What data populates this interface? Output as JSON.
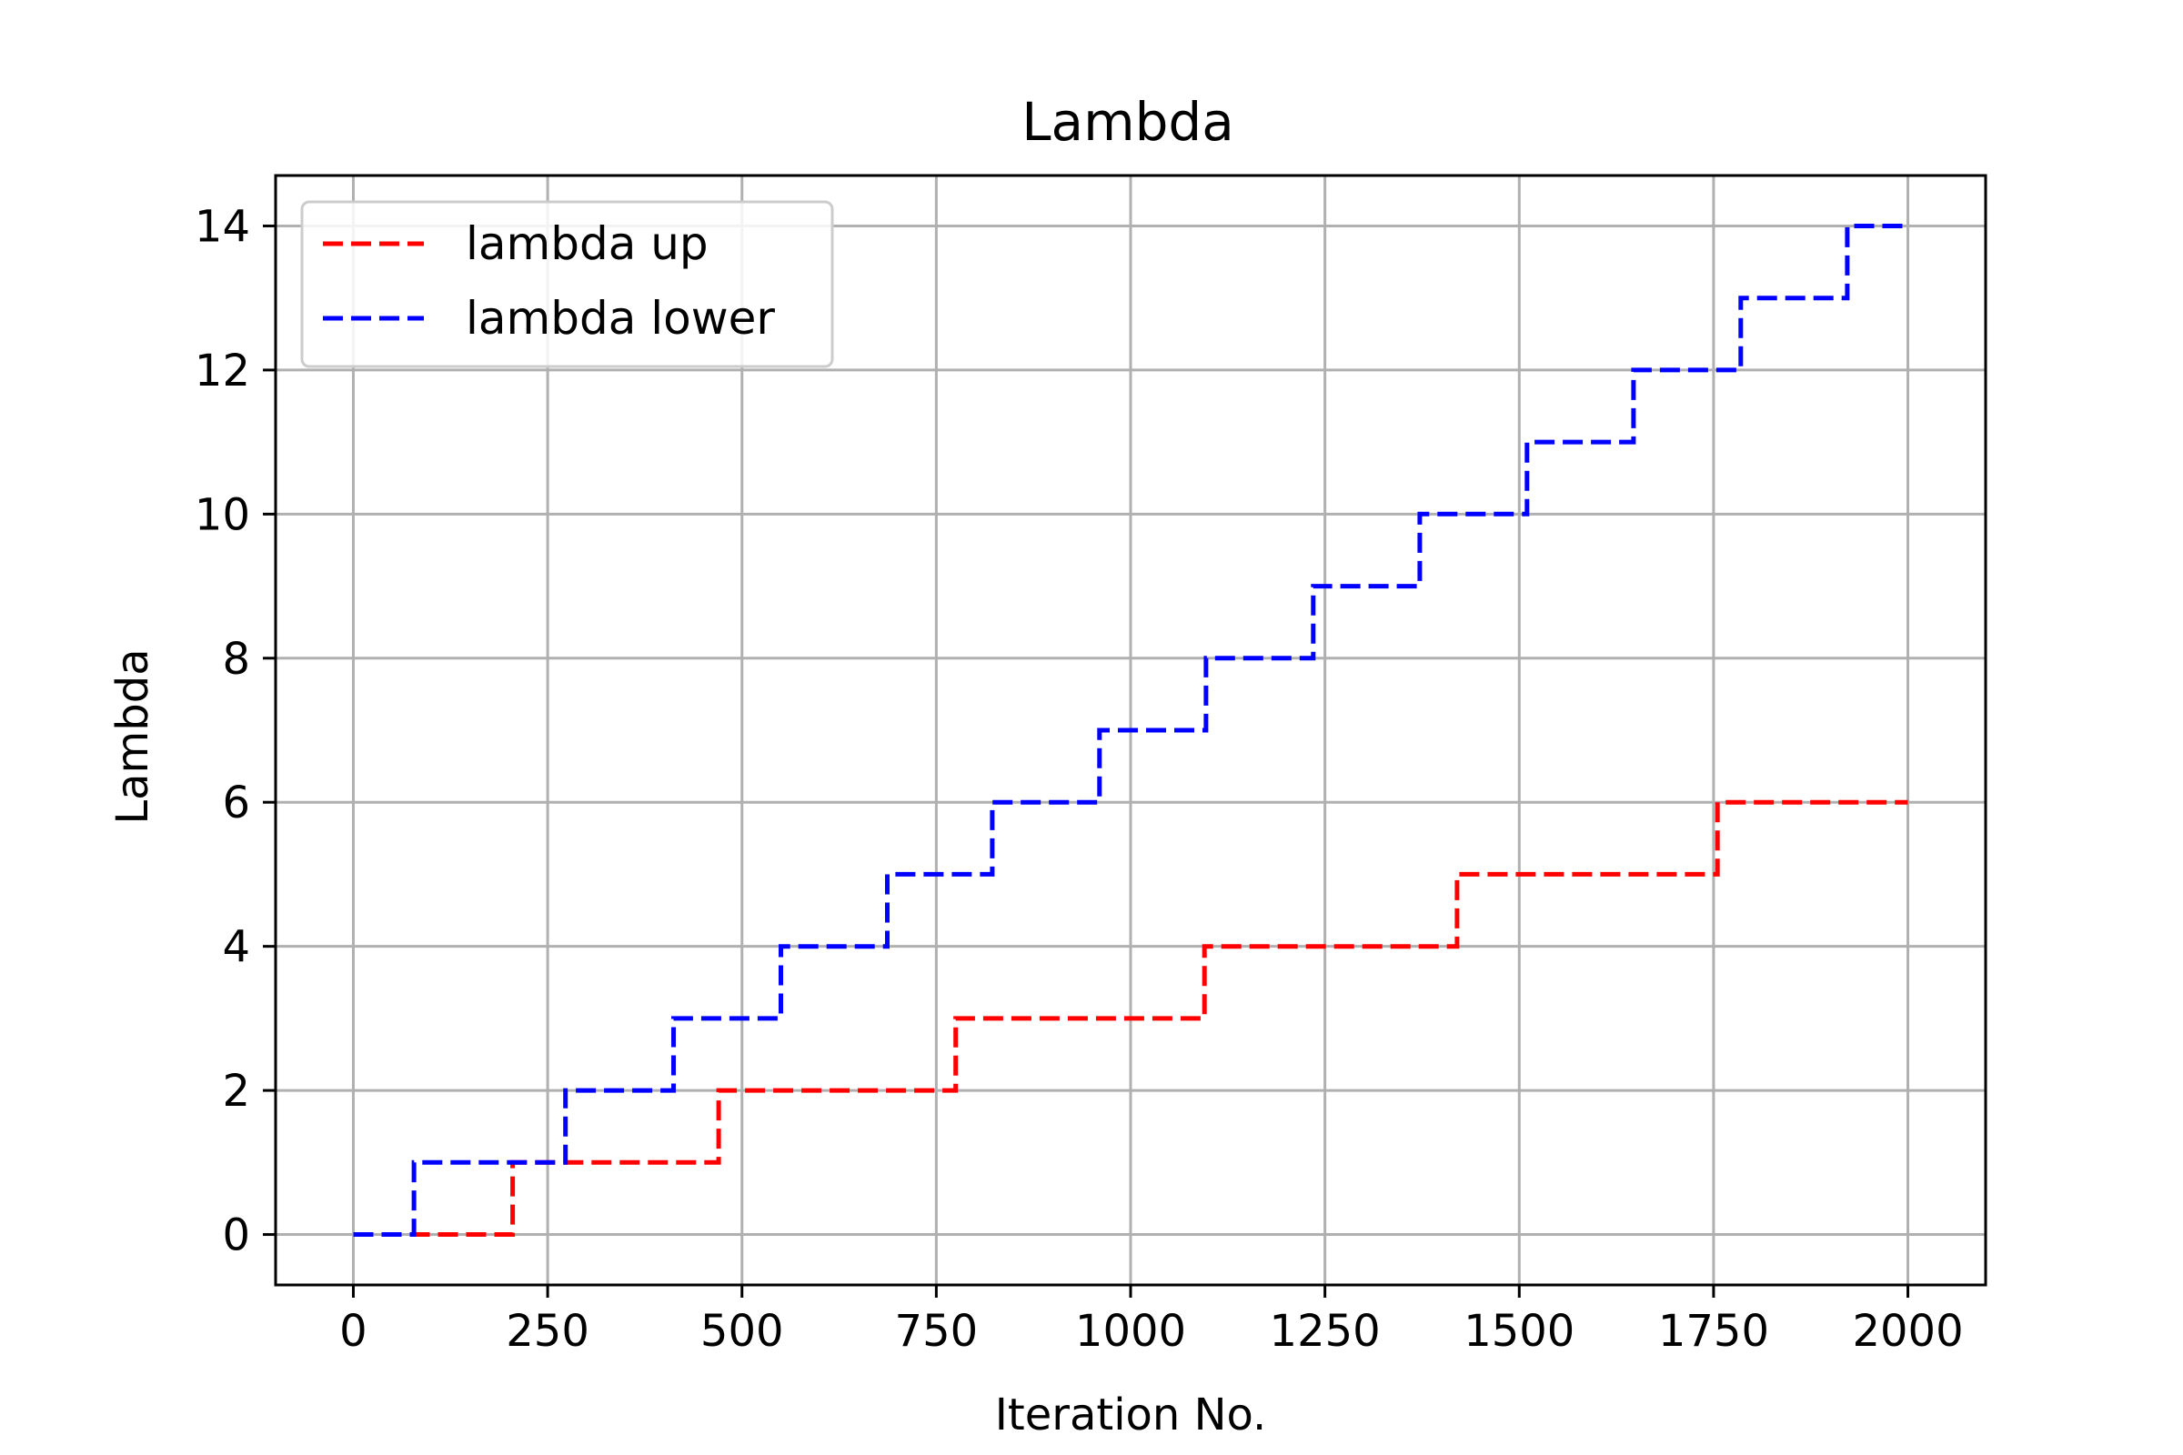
{
  "chart_data": {
    "type": "line",
    "title": "Lambda",
    "xlabel": "Iteration No.",
    "ylabel": "Lambda",
    "xlim": [
      -100,
      2100
    ],
    "ylim": [
      -0.7,
      14.7
    ],
    "xticks": [
      0,
      250,
      500,
      750,
      1000,
      1250,
      1500,
      1750,
      2000
    ],
    "yticks": [
      0,
      2,
      4,
      6,
      8,
      10,
      12,
      14
    ],
    "grid": true,
    "legend": "top-left",
    "series": [
      {
        "name": "lambda up",
        "color": "#ff0000",
        "style": "dashed-step",
        "x": [
          0,
          205,
          205,
          470,
          470,
          775,
          775,
          1095,
          1095,
          1420,
          1420,
          1755,
          1755,
          2000
        ],
        "y": [
          0,
          0,
          1,
          1,
          2,
          2,
          3,
          3,
          4,
          4,
          5,
          5,
          6,
          6
        ]
      },
      {
        "name": "lambda lower",
        "color": "#0000ff",
        "style": "dashed-step",
        "x": [
          0,
          78,
          78,
          273,
          273,
          412,
          412,
          550,
          550,
          687,
          687,
          822,
          822,
          960,
          960,
          1097,
          1097,
          1235,
          1235,
          1372,
          1372,
          1510,
          1510,
          1647,
          1647,
          1785,
          1785,
          1922,
          1922,
          2000
        ],
        "y": [
          0,
          0,
          1,
          1,
          2,
          2,
          3,
          3,
          4,
          4,
          5,
          5,
          6,
          6,
          7,
          7,
          8,
          8,
          9,
          9,
          10,
          10,
          11,
          11,
          12,
          12,
          13,
          13,
          14,
          14
        ]
      }
    ]
  }
}
